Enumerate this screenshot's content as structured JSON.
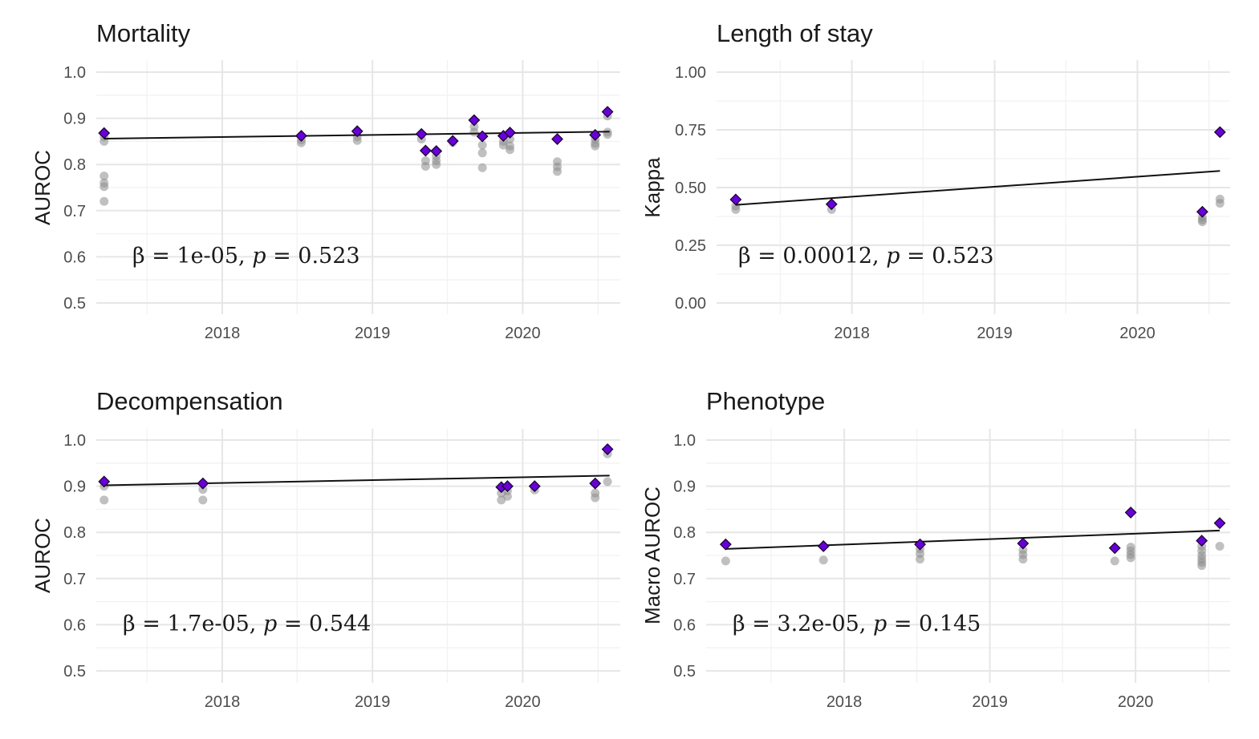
{
  "colors": {
    "best": "#6a00d9",
    "other": "#8c8c8c",
    "grid": "#e6e6e6",
    "line": "#111111"
  },
  "chart_data": [
    {
      "type": "scatter",
      "title": "Mortality",
      "ylabel": "AUROC",
      "xlabel": "",
      "ylim": [
        0.5,
        1.0
      ],
      "xlim": [
        "2017-03-01",
        "2020-08-25"
      ],
      "x_ticks": [
        "2018",
        "2019",
        "2020"
      ],
      "y_ticks": [
        "0.5",
        "0.6",
        "0.7",
        "0.8",
        "0.9",
        "1.0"
      ],
      "annotation": {
        "beta": "1e-05",
        "p": "0.523"
      },
      "fit": {
        "x": [
          "2017-03-20",
          "2020-07-30"
        ],
        "y": [
          0.856,
          0.871
        ]
      },
      "best_points": [
        {
          "x": "2017-03-20",
          "y": 0.868
        },
        {
          "x": "2018-07-12",
          "y": 0.862
        },
        {
          "x": "2018-11-25",
          "y": 0.872
        },
        {
          "x": "2019-04-30",
          "y": 0.866
        },
        {
          "x": "2019-05-10",
          "y": 0.83
        },
        {
          "x": "2019-06-05",
          "y": 0.829
        },
        {
          "x": "2019-07-15",
          "y": 0.851
        },
        {
          "x": "2019-09-05",
          "y": 0.896
        },
        {
          "x": "2019-09-25",
          "y": 0.861
        },
        {
          "x": "2019-11-15",
          "y": 0.862
        },
        {
          "x": "2019-12-01",
          "y": 0.869
        },
        {
          "x": "2020-03-25",
          "y": 0.855
        },
        {
          "x": "2020-06-25",
          "y": 0.864
        },
        {
          "x": "2020-07-25",
          "y": 0.914
        }
      ],
      "other_points": [
        {
          "x": "2017-03-20",
          "y": 0.86
        },
        {
          "x": "2017-03-20",
          "y": 0.85
        },
        {
          "x": "2017-03-20",
          "y": 0.775
        },
        {
          "x": "2017-03-20",
          "y": 0.76
        },
        {
          "x": "2017-03-20",
          "y": 0.752
        },
        {
          "x": "2017-03-20",
          "y": 0.72
        },
        {
          "x": "2018-07-12",
          "y": 0.853
        },
        {
          "x": "2018-07-12",
          "y": 0.847
        },
        {
          "x": "2018-11-25",
          "y": 0.86
        },
        {
          "x": "2018-11-25",
          "y": 0.852
        },
        {
          "x": "2019-04-30",
          "y": 0.855
        },
        {
          "x": "2019-05-10",
          "y": 0.808
        },
        {
          "x": "2019-05-10",
          "y": 0.796
        },
        {
          "x": "2019-06-05",
          "y": 0.818
        },
        {
          "x": "2019-06-05",
          "y": 0.808
        },
        {
          "x": "2019-06-05",
          "y": 0.8
        },
        {
          "x": "2019-07-15",
          "y": 0.848
        },
        {
          "x": "2019-09-05",
          "y": 0.882
        },
        {
          "x": "2019-09-05",
          "y": 0.87
        },
        {
          "x": "2019-09-25",
          "y": 0.842
        },
        {
          "x": "2019-09-25",
          "y": 0.825
        },
        {
          "x": "2019-09-25",
          "y": 0.793
        },
        {
          "x": "2019-11-15",
          "y": 0.85
        },
        {
          "x": "2019-11-15",
          "y": 0.842
        },
        {
          "x": "2019-12-01",
          "y": 0.855
        },
        {
          "x": "2019-12-01",
          "y": 0.84
        },
        {
          "x": "2019-12-01",
          "y": 0.832
        },
        {
          "x": "2020-03-25",
          "y": 0.806
        },
        {
          "x": "2020-03-25",
          "y": 0.795
        },
        {
          "x": "2020-03-25",
          "y": 0.785
        },
        {
          "x": "2020-06-25",
          "y": 0.855
        },
        {
          "x": "2020-06-25",
          "y": 0.846
        },
        {
          "x": "2020-06-25",
          "y": 0.84
        },
        {
          "x": "2020-07-25",
          "y": 0.905
        },
        {
          "x": "2020-07-25",
          "y": 0.87
        },
        {
          "x": "2020-07-25",
          "y": 0.865
        }
      ]
    },
    {
      "type": "scatter",
      "title": "Length of stay",
      "ylabel": "Kappa",
      "xlabel": "",
      "ylim": [
        0.0,
        1.0
      ],
      "xlim": [
        "2017-01-20",
        "2020-08-25"
      ],
      "x_ticks": [
        "2018",
        "2019",
        "2020"
      ],
      "y_ticks": [
        "0.00",
        "0.25",
        "0.50",
        "0.75",
        "1.00"
      ],
      "annotation": {
        "beta": "0.00012",
        "p": "0.523"
      },
      "fit": {
        "x": [
          "2017-03-10",
          "2020-07-30"
        ],
        "y": [
          0.425,
          0.572
        ]
      },
      "best_points": [
        {
          "x": "2017-03-10",
          "y": 0.448
        },
        {
          "x": "2017-11-10",
          "y": 0.428
        },
        {
          "x": "2020-06-15",
          "y": 0.395
        },
        {
          "x": "2020-07-30",
          "y": 0.74
        }
      ],
      "other_points": [
        {
          "x": "2017-03-10",
          "y": 0.42
        },
        {
          "x": "2017-03-10",
          "y": 0.405
        },
        {
          "x": "2017-11-10",
          "y": 0.405
        },
        {
          "x": "2020-06-15",
          "y": 0.372
        },
        {
          "x": "2020-06-15",
          "y": 0.36
        },
        {
          "x": "2020-06-15",
          "y": 0.352
        },
        {
          "x": "2020-07-30",
          "y": 0.45
        },
        {
          "x": "2020-07-30",
          "y": 0.432
        }
      ]
    },
    {
      "type": "scatter",
      "title": "Decompensation",
      "ylabel": "AUROC",
      "xlabel": "",
      "ylim": [
        0.5,
        1.0
      ],
      "xlim": [
        "2017-03-01",
        "2020-08-25"
      ],
      "x_ticks": [
        "2018",
        "2019",
        "2020"
      ],
      "y_ticks": [
        "0.5",
        "0.6",
        "0.7",
        "0.8",
        "0.9",
        "1.0"
      ],
      "annotation": {
        "beta": "1.7e-05",
        "p": "0.544"
      },
      "fit": {
        "x": [
          "2017-03-20",
          "2020-07-30"
        ],
        "y": [
          0.902,
          0.923
        ]
      },
      "best_points": [
        {
          "x": "2017-03-20",
          "y": 0.91
        },
        {
          "x": "2017-11-15",
          "y": 0.906
        },
        {
          "x": "2019-11-10",
          "y": 0.898
        },
        {
          "x": "2019-11-25",
          "y": 0.9
        },
        {
          "x": "2020-01-30",
          "y": 0.9
        },
        {
          "x": "2020-06-25",
          "y": 0.906
        },
        {
          "x": "2020-07-25",
          "y": 0.98
        }
      ],
      "other_points": [
        {
          "x": "2017-03-20",
          "y": 0.9
        },
        {
          "x": "2017-03-20",
          "y": 0.87
        },
        {
          "x": "2017-11-15",
          "y": 0.893
        },
        {
          "x": "2017-11-15",
          "y": 0.87
        },
        {
          "x": "2019-11-10",
          "y": 0.885
        },
        {
          "x": "2019-11-10",
          "y": 0.87
        },
        {
          "x": "2019-11-25",
          "y": 0.89
        },
        {
          "x": "2019-11-25",
          "y": 0.878
        },
        {
          "x": "2020-01-30",
          "y": 0.892
        },
        {
          "x": "2020-06-25",
          "y": 0.885
        },
        {
          "x": "2020-06-25",
          "y": 0.875
        },
        {
          "x": "2020-07-25",
          "y": 0.97
        },
        {
          "x": "2020-07-25",
          "y": 0.91
        }
      ]
    },
    {
      "type": "scatter",
      "title": "Phenotype",
      "ylabel": "Macro AUROC",
      "xlabel": "",
      "ylim": [
        0.5,
        1.0
      ],
      "xlim": [
        "2017-01-20",
        "2020-08-25"
      ],
      "x_ticks": [
        "2018",
        "2019",
        "2020"
      ],
      "y_ticks": [
        "0.5",
        "0.6",
        "0.7",
        "0.8",
        "0.9",
        "1.0"
      ],
      "annotation": {
        "beta": "3.2e-05",
        "p": "0.145"
      },
      "fit": {
        "x": [
          "2017-03-10",
          "2020-07-30"
        ],
        "y": [
          0.764,
          0.804
        ]
      },
      "best_points": [
        {
          "x": "2017-03-10",
          "y": 0.774
        },
        {
          "x": "2017-11-10",
          "y": 0.77
        },
        {
          "x": "2018-07-10",
          "y": 0.774
        },
        {
          "x": "2019-03-25",
          "y": 0.776
        },
        {
          "x": "2019-11-10",
          "y": 0.766
        },
        {
          "x": "2019-12-20",
          "y": 0.843
        },
        {
          "x": "2020-06-15",
          "y": 0.782
        },
        {
          "x": "2020-07-30",
          "y": 0.82
        }
      ],
      "other_points": [
        {
          "x": "2017-03-10",
          "y": 0.738
        },
        {
          "x": "2017-11-10",
          "y": 0.74
        },
        {
          "x": "2018-07-10",
          "y": 0.764
        },
        {
          "x": "2018-07-10",
          "y": 0.754
        },
        {
          "x": "2018-07-10",
          "y": 0.742
        },
        {
          "x": "2019-03-25",
          "y": 0.762
        },
        {
          "x": "2019-03-25",
          "y": 0.752
        },
        {
          "x": "2019-03-25",
          "y": 0.742
        },
        {
          "x": "2019-11-10",
          "y": 0.738
        },
        {
          "x": "2019-12-20",
          "y": 0.768
        },
        {
          "x": "2019-12-20",
          "y": 0.76
        },
        {
          "x": "2019-12-20",
          "y": 0.752
        },
        {
          "x": "2019-12-20",
          "y": 0.745
        },
        {
          "x": "2020-06-15",
          "y": 0.77
        },
        {
          "x": "2020-06-15",
          "y": 0.76
        },
        {
          "x": "2020-06-15",
          "y": 0.75
        },
        {
          "x": "2020-06-15",
          "y": 0.742
        },
        {
          "x": "2020-06-15",
          "y": 0.735
        },
        {
          "x": "2020-06-15",
          "y": 0.728
        },
        {
          "x": "2020-07-30",
          "y": 0.77
        }
      ]
    }
  ]
}
